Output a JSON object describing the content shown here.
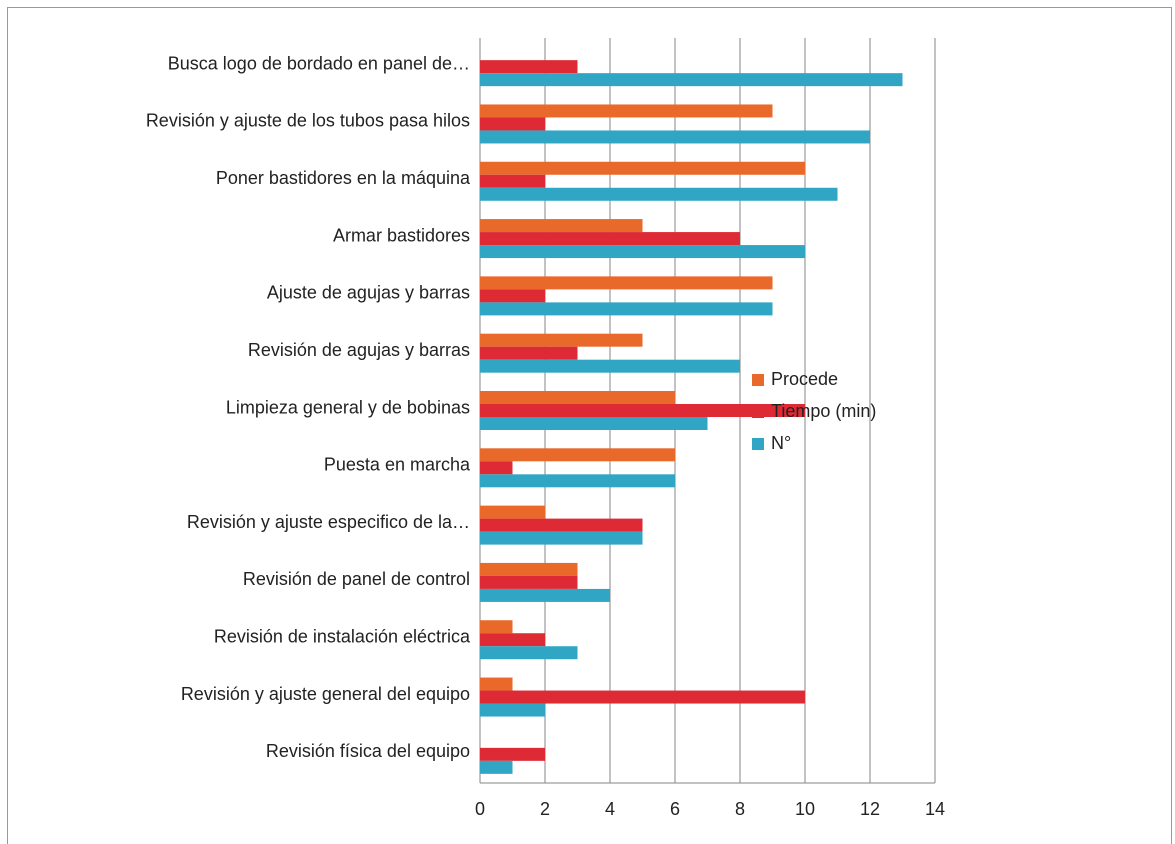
{
  "chart_data": {
    "type": "bar",
    "orientation": "horizontal",
    "categories": [
      "Busca logo de bordado en panel de…",
      "Revisión y ajuste de los tubos pasa hilos",
      "Poner bastidores en la máquina",
      "Armar bastidores",
      "Ajuste de agujas y barras",
      "Revisión de agujas y barras",
      "Limpieza general y de bobinas",
      "Puesta en marcha",
      "Revisión y ajuste especifico de la…",
      "Revisión de panel de control",
      "Revisión de instalación eléctrica",
      "Revisión y ajuste general del equipo",
      "Revisión física del equipo"
    ],
    "series": [
      {
        "name": "Procede",
        "color": "#e8692a",
        "values": [
          0,
          9,
          10,
          5,
          9,
          5,
          6,
          6,
          2,
          3,
          1,
          1,
          0
        ]
      },
      {
        "name": "Tiempo (min)",
        "color": "#de2a35",
        "values": [
          3,
          2,
          2,
          8,
          2,
          3,
          10,
          1,
          5,
          3,
          2,
          10,
          2
        ]
      },
      {
        "name": "N°",
        "color": "#31a6c4",
        "values": [
          13,
          12,
          11,
          10,
          9,
          8,
          7,
          6,
          5,
          4,
          3,
          2,
          1
        ]
      }
    ],
    "xlim": [
      0,
      14
    ],
    "xticks": [
      0,
      2,
      4,
      6,
      8,
      10,
      12,
      14
    ],
    "grid": true,
    "legend": "right"
  }
}
